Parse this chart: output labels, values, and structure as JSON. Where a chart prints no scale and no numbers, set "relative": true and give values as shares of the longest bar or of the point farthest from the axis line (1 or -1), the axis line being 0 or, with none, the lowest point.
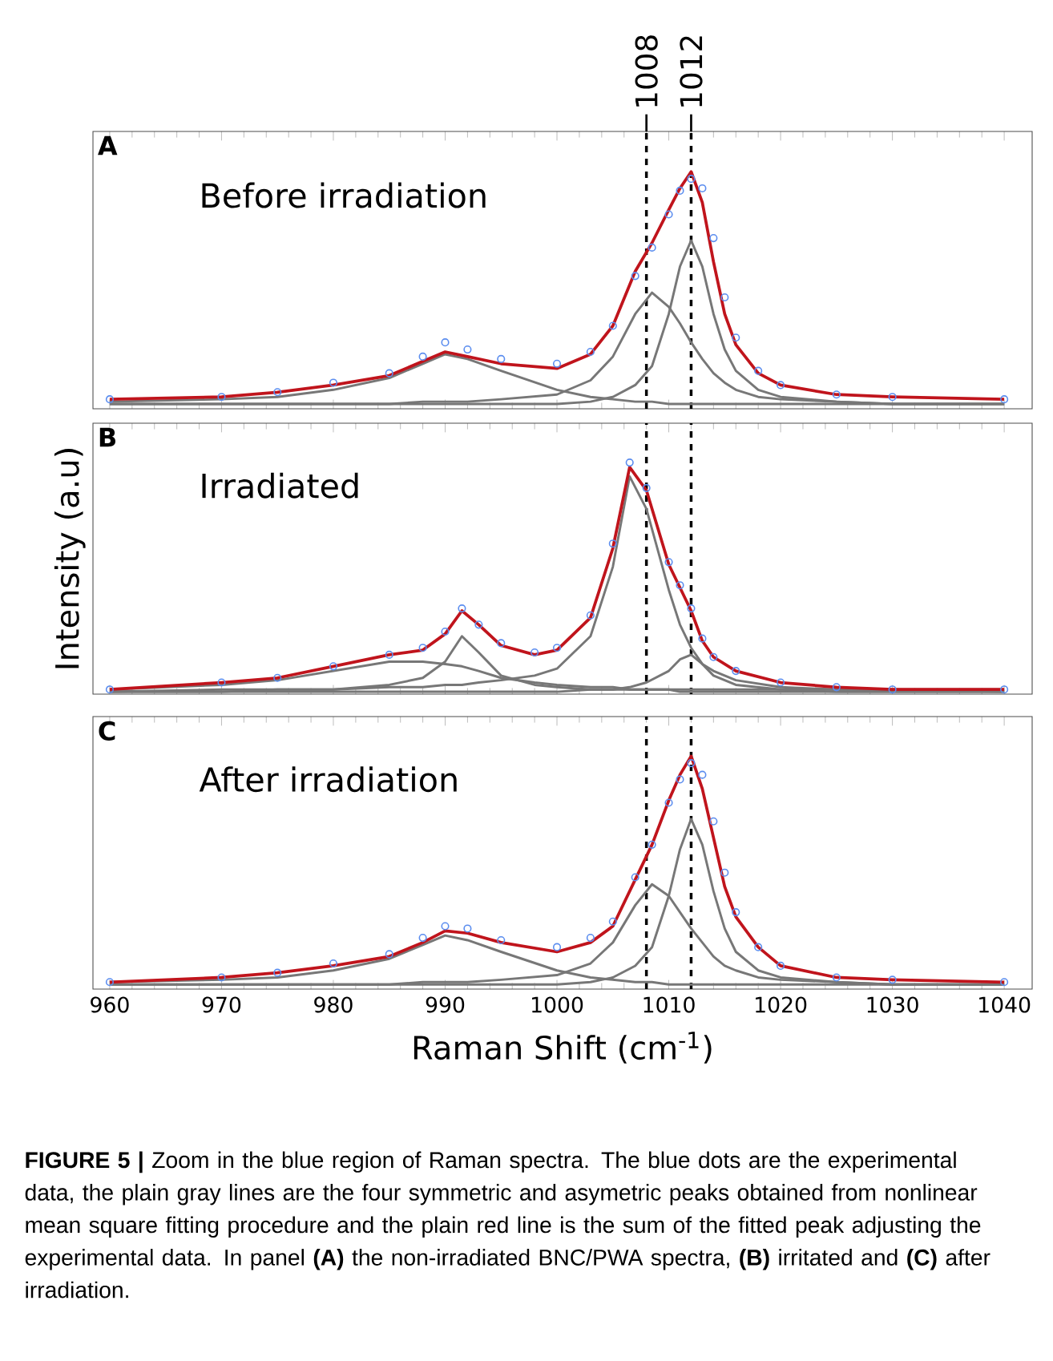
{
  "chart_data": [
    {
      "type": "line",
      "relative": true,
      "title": "Before irradiation",
      "annotations": [
        "A"
      ],
      "x": [
        960,
        970,
        975,
        980,
        985,
        988,
        990,
        992,
        995,
        1000,
        1003,
        1005,
        1007,
        1008.5,
        1010,
        1011,
        1012,
        1013,
        1014,
        1015,
        1016,
        1018,
        1020,
        1025,
        1030,
        1040
      ],
      "xlim": [
        958.5,
        1042.5
      ],
      "xticks": [
        960,
        970,
        980,
        990,
        1000,
        1010,
        1020,
        1030,
        1040
      ],
      "tick_labels": false,
      "series": [
        {
          "color": "#777777",
          "values": [
            0.03,
            0.04,
            0.05,
            0.08,
            0.13,
            0.19,
            0.23,
            0.21,
            0.16,
            0.08,
            0.05,
            0.04,
            0.03,
            0.03,
            0.02,
            0.02,
            0.02,
            0.02,
            0.02,
            0.02,
            0.02,
            0.02,
            0.02,
            0.02,
            0.02,
            0.02
          ]
        },
        {
          "color": "#777777",
          "values": [
            0.02,
            0.02,
            0.02,
            0.02,
            0.02,
            0.03,
            0.03,
            0.03,
            0.04,
            0.06,
            0.12,
            0.22,
            0.4,
            0.49,
            0.43,
            0.36,
            0.28,
            0.21,
            0.15,
            0.11,
            0.08,
            0.05,
            0.04,
            0.03,
            0.02,
            0.02
          ]
        },
        {
          "color": "#777777",
          "values": [
            0.02,
            0.02,
            0.02,
            0.02,
            0.02,
            0.02,
            0.02,
            0.02,
            0.02,
            0.02,
            0.03,
            0.05,
            0.1,
            0.18,
            0.4,
            0.6,
            0.71,
            0.6,
            0.4,
            0.25,
            0.16,
            0.08,
            0.05,
            0.03,
            0.02,
            0.02
          ]
        },
        {
          "type": "scatter",
          "marker": "circle",
          "color": "#5b8def",
          "values": [
            0.04,
            0.05,
            0.07,
            0.11,
            0.15,
            0.22,
            0.28,
            0.25,
            0.21,
            0.19,
            0.24,
            0.35,
            0.56,
            0.68,
            0.82,
            0.92,
            0.97,
            0.93,
            0.72,
            0.47,
            0.3,
            0.16,
            0.1,
            0.06,
            0.05,
            0.04
          ]
        },
        {
          "color": "#c0141c",
          "values": [
            0.04,
            0.05,
            0.07,
            0.1,
            0.14,
            0.2,
            0.24,
            0.22,
            0.19,
            0.17,
            0.23,
            0.35,
            0.58,
            0.7,
            0.84,
            0.93,
            1.0,
            0.87,
            0.62,
            0.4,
            0.27,
            0.15,
            0.1,
            0.06,
            0.05,
            0.04
          ]
        }
      ],
      "ref_lines": [
        {
          "axis": "x",
          "value": 1008,
          "label": "1008",
          "color": "#000000",
          "line_style": "dashed"
        },
        {
          "axis": "x",
          "value": 1012,
          "label": "1012",
          "color": "#000000",
          "line_style": "dashed"
        }
      ]
    },
    {
      "type": "line",
      "relative": true,
      "title": "Irradiated",
      "annotations": [
        "B"
      ],
      "ylabel": "Intensity (a.u)",
      "x": [
        960,
        970,
        975,
        980,
        985,
        988,
        990,
        991.5,
        993,
        995,
        998,
        1000,
        1003,
        1005,
        1006.5,
        1008,
        1010,
        1011,
        1012,
        1013,
        1014,
        1016,
        1020,
        1025,
        1030,
        1040
      ],
      "xlim": [
        958.5,
        1042.5
      ],
      "xticks": [
        960,
        970,
        980,
        990,
        1000,
        1010,
        1020,
        1030,
        1040
      ],
      "tick_labels": false,
      "series": [
        {
          "color": "#777777",
          "values": [
            0.02,
            0.04,
            0.06,
            0.1,
            0.14,
            0.14,
            0.13,
            0.12,
            0.1,
            0.07,
            0.05,
            0.04,
            0.03,
            0.03,
            0.02,
            0.02,
            0.02,
            0.02,
            0.02,
            0.02,
            0.02,
            0.02,
            0.02,
            0.02,
            0.02,
            0.02
          ]
        },
        {
          "color": "#777777",
          "values": [
            0.01,
            0.01,
            0.02,
            0.02,
            0.04,
            0.07,
            0.14,
            0.25,
            0.18,
            0.08,
            0.04,
            0.03,
            0.02,
            0.02,
            0.02,
            0.02,
            0.02,
            0.01,
            0.01,
            0.01,
            0.01,
            0.01,
            0.01,
            0.01,
            0.01,
            0.01
          ]
        },
        {
          "color": "#777777",
          "values": [
            0.01,
            0.02,
            0.02,
            0.02,
            0.03,
            0.03,
            0.04,
            0.04,
            0.05,
            0.06,
            0.08,
            0.11,
            0.25,
            0.55,
            0.94,
            0.8,
            0.45,
            0.3,
            0.2,
            0.13,
            0.1,
            0.06,
            0.03,
            0.02,
            0.02,
            0.01
          ]
        },
        {
          "color": "#777777",
          "values": [
            0.01,
            0.01,
            0.01,
            0.01,
            0.01,
            0.01,
            0.01,
            0.01,
            0.01,
            0.01,
            0.01,
            0.01,
            0.02,
            0.02,
            0.03,
            0.05,
            0.1,
            0.15,
            0.17,
            0.13,
            0.08,
            0.04,
            0.02,
            0.01,
            0.01,
            0.01
          ]
        },
        {
          "type": "scatter",
          "marker": "circle",
          "color": "#5b8def",
          "values": [
            0.02,
            0.05,
            0.07,
            0.12,
            0.17,
            0.2,
            0.27,
            0.37,
            0.3,
            0.22,
            0.18,
            0.2,
            0.34,
            0.65,
            1.0,
            0.89,
            0.57,
            0.47,
            0.37,
            0.24,
            0.16,
            0.1,
            0.05,
            0.03,
            0.02,
            0.02
          ]
        },
        {
          "color": "#c0141c",
          "values": [
            0.02,
            0.05,
            0.07,
            0.12,
            0.17,
            0.19,
            0.26,
            0.36,
            0.3,
            0.21,
            0.17,
            0.19,
            0.33,
            0.63,
            0.98,
            0.88,
            0.56,
            0.46,
            0.36,
            0.23,
            0.16,
            0.1,
            0.05,
            0.03,
            0.02,
            0.02
          ]
        }
      ],
      "ref_lines": [
        {
          "axis": "x",
          "value": 1008,
          "color": "#000000",
          "line_style": "dashed"
        },
        {
          "axis": "x",
          "value": 1012,
          "color": "#000000",
          "line_style": "dashed"
        }
      ]
    },
    {
      "type": "line",
      "relative": true,
      "title": "After irradiation",
      "xlabel": "Raman Shift (cm$^{-1}$)",
      "annotations": [
        "C",
        "**FIGURE 5 |** Zoom in the blue region of Raman spectra. The blue dots are the experimental data, the plain gray lines are the four symmetric and asymetric peaks obtained from nonlinear mean square fitting procedure and the plain red line is the sum of the fitted peak adjusting the experimental data. In panel **(A)** the non-irradiated BNC/PWA spectra, **(B)** irritated and **(C)** after irradiation."
      ],
      "x": [
        960,
        970,
        975,
        980,
        985,
        988,
        990,
        992,
        995,
        1000,
        1003,
        1005,
        1007,
        1008.5,
        1010,
        1011,
        1012,
        1013,
        1014,
        1015,
        1016,
        1018,
        1020,
        1025,
        1030,
        1040
      ],
      "xlim": [
        958.5,
        1042.5
      ],
      "xticks": [
        960,
        970,
        980,
        990,
        1000,
        1010,
        1020,
        1030,
        1040
      ],
      "tick_labels": "x",
      "series": [
        {
          "color": "#777777",
          "values": [
            0.03,
            0.04,
            0.05,
            0.08,
            0.13,
            0.19,
            0.23,
            0.21,
            0.16,
            0.08,
            0.05,
            0.04,
            0.03,
            0.03,
            0.02,
            0.02,
            0.02,
            0.02,
            0.02,
            0.02,
            0.02,
            0.02,
            0.02,
            0.02,
            0.02,
            0.02
          ]
        },
        {
          "color": "#777777",
          "values": [
            0.02,
            0.02,
            0.02,
            0.02,
            0.02,
            0.03,
            0.03,
            0.03,
            0.04,
            0.06,
            0.11,
            0.2,
            0.36,
            0.45,
            0.4,
            0.33,
            0.26,
            0.2,
            0.14,
            0.1,
            0.08,
            0.05,
            0.04,
            0.03,
            0.02,
            0.02
          ]
        },
        {
          "color": "#777777",
          "values": [
            0.02,
            0.02,
            0.02,
            0.02,
            0.02,
            0.02,
            0.02,
            0.02,
            0.02,
            0.02,
            0.03,
            0.05,
            0.1,
            0.18,
            0.4,
            0.6,
            0.73,
            0.62,
            0.42,
            0.26,
            0.16,
            0.08,
            0.05,
            0.03,
            0.02,
            0.02
          ]
        },
        {
          "type": "scatter",
          "marker": "circle",
          "color": "#5b8def",
          "values": [
            0.03,
            0.05,
            0.07,
            0.11,
            0.15,
            0.22,
            0.27,
            0.26,
            0.21,
            0.18,
            0.22,
            0.29,
            0.48,
            0.62,
            0.8,
            0.9,
            0.97,
            0.92,
            0.72,
            0.5,
            0.33,
            0.18,
            0.1,
            0.05,
            0.04,
            0.03
          ]
        },
        {
          "color": "#c0141c",
          "values": [
            0.03,
            0.05,
            0.07,
            0.1,
            0.14,
            0.2,
            0.25,
            0.24,
            0.2,
            0.16,
            0.2,
            0.27,
            0.47,
            0.62,
            0.81,
            0.92,
            1.0,
            0.86,
            0.65,
            0.44,
            0.31,
            0.18,
            0.1,
            0.05,
            0.04,
            0.03
          ]
        }
      ],
      "ref_lines": [
        {
          "axis": "x",
          "value": 1008,
          "color": "#000000",
          "line_style": "dashed"
        },
        {
          "axis": "x",
          "value": 1012,
          "color": "#000000",
          "line_style": "dashed"
        }
      ]
    }
  ]
}
